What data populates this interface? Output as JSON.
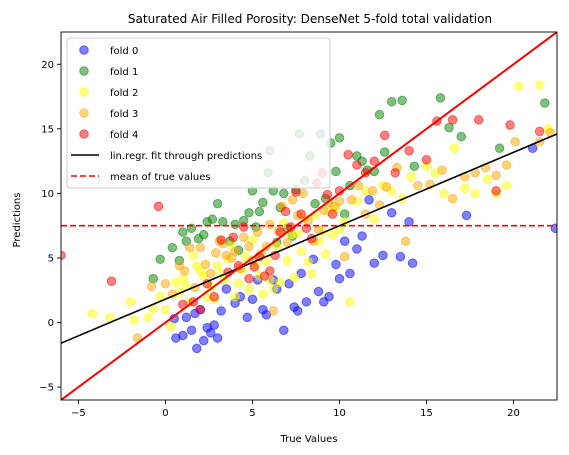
{
  "chart_data": {
    "type": "scatter",
    "title": "Saturated Air Filled Porosity: DenseNet 5-fold total validation",
    "xlabel": "True Values",
    "ylabel": "Predictions",
    "xlim": [
      -6,
      22.5
    ],
    "ylim": [
      -6,
      22.5
    ],
    "xticks": [
      "−5",
      "0",
      "5",
      "10",
      "15",
      "20"
    ],
    "xtick_values": [
      -5,
      0,
      5,
      10,
      15,
      20
    ],
    "yticks": [
      "−5",
      "0",
      "5",
      "10",
      "15",
      "20"
    ],
    "ytick_values": [
      -5,
      0,
      5,
      10,
      15,
      20
    ],
    "grid": false,
    "legend_position": "top-left",
    "series": [
      {
        "name": "fold 0",
        "color": "#0000ff",
        "points": [
          [
            0.5,
            0.3
          ],
          [
            0.6,
            -1.2
          ],
          [
            1.0,
            -1.0
          ],
          [
            1.2,
            0.4
          ],
          [
            1.5,
            -0.6
          ],
          [
            1.7,
            0.7
          ],
          [
            1.8,
            -2.0
          ],
          [
            2.0,
            1.0
          ],
          [
            2.2,
            -1.4
          ],
          [
            2.4,
            -0.4
          ],
          [
            2.6,
            -0.8
          ],
          [
            2.8,
            -0.2
          ],
          [
            3.0,
            -1.2
          ],
          [
            3.2,
            0.9
          ],
          [
            3.5,
            2.6
          ],
          [
            4.0,
            1.5
          ],
          [
            4.3,
            2.0
          ],
          [
            4.7,
            0.4
          ],
          [
            5.0,
            1.8
          ],
          [
            5.3,
            3.3
          ],
          [
            5.6,
            1.0
          ],
          [
            5.8,
            0.6
          ],
          [
            6.2,
            3.3
          ],
          [
            6.4,
            2.6
          ],
          [
            6.8,
            -0.6
          ],
          [
            7.1,
            3.0
          ],
          [
            7.4,
            1.2
          ],
          [
            7.6,
            0.9
          ],
          [
            7.8,
            3.8
          ],
          [
            8.1,
            1.6
          ],
          [
            8.5,
            4.9
          ],
          [
            8.8,
            2.4
          ],
          [
            9.1,
            1.6
          ],
          [
            9.4,
            2.0
          ],
          [
            9.8,
            4.5
          ],
          [
            10.0,
            3.4
          ],
          [
            10.3,
            6.3
          ],
          [
            10.6,
            3.8
          ],
          [
            11.0,
            5.7
          ],
          [
            11.3,
            6.7
          ],
          [
            11.7,
            9.5
          ],
          [
            12.0,
            4.6
          ],
          [
            12.5,
            5.2
          ],
          [
            13.0,
            8.5
          ],
          [
            13.5,
            5.1
          ],
          [
            14.0,
            7.8
          ],
          [
            14.2,
            4.6
          ],
          [
            17.3,
            8.3
          ],
          [
            21.1,
            13.5
          ],
          [
            22.4,
            7.3
          ]
        ]
      },
      {
        "name": "fold 1",
        "color": "#008000",
        "points": [
          [
            -0.7,
            3.4
          ],
          [
            -0.3,
            4.9
          ],
          [
            0.4,
            5.8
          ],
          [
            0.8,
            4.8
          ],
          [
            1.0,
            7.0
          ],
          [
            1.2,
            6.3
          ],
          [
            1.5,
            7.3
          ],
          [
            1.9,
            6.5
          ],
          [
            2.2,
            6.8
          ],
          [
            2.4,
            7.8
          ],
          [
            2.7,
            8.0
          ],
          [
            3.0,
            9.2
          ],
          [
            3.3,
            7.8
          ],
          [
            3.7,
            6.3
          ],
          [
            4.0,
            7.6
          ],
          [
            4.2,
            5.6
          ],
          [
            4.5,
            7.9
          ],
          [
            4.8,
            8.5
          ],
          [
            5.0,
            10.2
          ],
          [
            5.2,
            7.4
          ],
          [
            5.4,
            8.6
          ],
          [
            5.6,
            9.3
          ],
          [
            5.9,
            11.6
          ],
          [
            6.0,
            13.3
          ],
          [
            6.2,
            10.2
          ],
          [
            6.4,
            6.2
          ],
          [
            6.6,
            8.9
          ],
          [
            6.8,
            10.0
          ],
          [
            7.0,
            7.3
          ],
          [
            7.3,
            6.7
          ],
          [
            7.5,
            10.3
          ],
          [
            7.7,
            14.6
          ],
          [
            8.0,
            11.0
          ],
          [
            8.3,
            12.9
          ],
          [
            8.6,
            9.2
          ],
          [
            8.9,
            14.6
          ],
          [
            9.2,
            9.6
          ],
          [
            9.5,
            13.9
          ],
          [
            9.8,
            11.7
          ],
          [
            10.0,
            14.3
          ],
          [
            10.3,
            8.4
          ],
          [
            10.6,
            10.6
          ],
          [
            11.0,
            12.9
          ],
          [
            11.3,
            12.5
          ],
          [
            11.6,
            11.8
          ],
          [
            12.0,
            11.7
          ],
          [
            12.3,
            16.1
          ],
          [
            12.6,
            13.2
          ],
          [
            13.0,
            17.1
          ],
          [
            13.6,
            17.2
          ],
          [
            14.3,
            12.1
          ],
          [
            15.8,
            17.4
          ],
          [
            16.3,
            15.1
          ],
          [
            17.0,
            14.4
          ],
          [
            19.2,
            13.5
          ],
          [
            21.8,
            17.0
          ]
        ]
      },
      {
        "name": "fold 2",
        "color": "#ffff00",
        "points": [
          [
            -4.2,
            0.7
          ],
          [
            -3.2,
            0.4
          ],
          [
            -2.0,
            1.6
          ],
          [
            -1.8,
            0.2
          ],
          [
            -1.0,
            0.4
          ],
          [
            -0.7,
            1.1
          ],
          [
            -0.3,
            2.0
          ],
          [
            0.0,
            1.0
          ],
          [
            0.3,
            -0.3
          ],
          [
            0.6,
            3.1
          ],
          [
            0.8,
            2.3
          ],
          [
            1.0,
            3.4
          ],
          [
            1.2,
            2.8
          ],
          [
            1.4,
            1.6
          ],
          [
            1.6,
            5.2
          ],
          [
            1.8,
            4.4
          ],
          [
            2.0,
            4.0
          ],
          [
            2.2,
            3.6
          ],
          [
            2.4,
            2.0
          ],
          [
            2.6,
            2.8
          ],
          [
            2.8,
            1.8
          ],
          [
            3.0,
            4.4
          ],
          [
            3.2,
            3.8
          ],
          [
            3.4,
            3.3
          ],
          [
            3.6,
            4.9
          ],
          [
            3.8,
            6.0
          ],
          [
            4.0,
            2.0
          ],
          [
            4.2,
            3.0
          ],
          [
            4.4,
            4.1
          ],
          [
            4.6,
            5.1
          ],
          [
            4.8,
            2.6
          ],
          [
            5.0,
            6.4
          ],
          [
            5.2,
            4.4
          ],
          [
            5.4,
            3.6
          ],
          [
            5.6,
            2.2
          ],
          [
            5.8,
            4.8
          ],
          [
            6.0,
            3.3
          ],
          [
            6.2,
            2.6
          ],
          [
            6.4,
            5.9
          ],
          [
            6.6,
            3.1
          ],
          [
            6.8,
            7.7
          ],
          [
            7.0,
            4.8
          ],
          [
            7.2,
            6.8
          ],
          [
            7.4,
            3.5
          ],
          [
            7.6,
            6.9
          ],
          [
            7.8,
            5.5
          ],
          [
            8.0,
            8.1
          ],
          [
            8.2,
            4.7
          ],
          [
            8.4,
            3.8
          ],
          [
            8.6,
            8.3
          ],
          [
            8.8,
            6.3
          ],
          [
            9.0,
            7.0
          ],
          [
            9.2,
            5.3
          ],
          [
            9.4,
            8.6
          ],
          [
            9.6,
            6.8
          ],
          [
            9.8,
            8.8
          ],
          [
            10.0,
            7.2
          ],
          [
            10.3,
            7.8
          ],
          [
            10.6,
            1.6
          ],
          [
            11.0,
            9.4
          ],
          [
            11.5,
            10.2
          ],
          [
            12.0,
            8.0
          ],
          [
            12.5,
            10.6
          ],
          [
            13.0,
            10.2
          ],
          [
            13.6,
            9.6
          ],
          [
            14.1,
            11.3
          ],
          [
            15.0,
            12.1
          ],
          [
            15.5,
            11.6
          ],
          [
            16.0,
            10.0
          ],
          [
            16.6,
            13.5
          ],
          [
            17.2,
            10.4
          ],
          [
            17.8,
            10.0
          ],
          [
            18.5,
            11.1
          ],
          [
            19.0,
            10.0
          ],
          [
            19.6,
            10.6
          ],
          [
            20.3,
            18.3
          ],
          [
            21.5,
            18.4
          ],
          [
            22.0,
            15.0
          ]
        ]
      },
      {
        "name": "fold 3",
        "color": "#ffa500",
        "points": [
          [
            -1.6,
            -1.2
          ],
          [
            -0.8,
            2.8
          ],
          [
            0.0,
            3.0
          ],
          [
            0.4,
            2.2
          ],
          [
            0.8,
            4.4
          ],
          [
            1.1,
            4.0
          ],
          [
            1.4,
            5.8
          ],
          [
            1.7,
            2.7
          ],
          [
            2.0,
            5.8
          ],
          [
            2.3,
            4.5
          ],
          [
            2.6,
            3.8
          ],
          [
            2.9,
            5.4
          ],
          [
            3.1,
            6.3
          ],
          [
            3.3,
            6.1
          ],
          [
            3.5,
            5.2
          ],
          [
            3.8,
            5.0
          ],
          [
            4.0,
            5.5
          ],
          [
            4.3,
            4.2
          ],
          [
            4.5,
            6.6
          ],
          [
            4.8,
            5.9
          ],
          [
            5.0,
            4.8
          ],
          [
            5.3,
            7.0
          ],
          [
            5.5,
            5.3
          ],
          [
            5.8,
            5.9
          ],
          [
            6.0,
            7.6
          ],
          [
            6.2,
            0.9
          ],
          [
            6.5,
            7.1
          ],
          [
            6.7,
            9.0
          ],
          [
            7.0,
            6.2
          ],
          [
            7.3,
            9.5
          ],
          [
            7.6,
            8.3
          ],
          [
            7.9,
            10.0
          ],
          [
            8.2,
            7.9
          ],
          [
            8.5,
            6.3
          ],
          [
            8.8,
            7.2
          ],
          [
            9.1,
            8.7
          ],
          [
            9.4,
            9.3
          ],
          [
            9.7,
            9.0
          ],
          [
            10.0,
            9.4
          ],
          [
            10.3,
            5.1
          ],
          [
            10.7,
            9.5
          ],
          [
            11.1,
            10.6
          ],
          [
            11.5,
            8.4
          ],
          [
            11.9,
            10.2
          ],
          [
            12.3,
            9.1
          ],
          [
            12.7,
            10.5
          ],
          [
            13.3,
            12.0
          ],
          [
            13.8,
            6.3
          ],
          [
            14.5,
            10.6
          ],
          [
            15.2,
            10.7
          ],
          [
            15.9,
            11.8
          ],
          [
            16.5,
            9.6
          ],
          [
            17.2,
            11.3
          ],
          [
            17.8,
            11.6
          ],
          [
            18.4,
            12.0
          ],
          [
            19.0,
            11.4
          ],
          [
            19.6,
            12.2
          ],
          [
            20.1,
            14.0
          ],
          [
            21.5,
            14.0
          ],
          [
            22.1,
            14.7
          ]
        ]
      },
      {
        "name": "fold 4",
        "color": "#ff0000",
        "points": [
          [
            -6.0,
            5.2
          ],
          [
            -3.1,
            3.2
          ],
          [
            -0.4,
            9.0
          ],
          [
            1.0,
            1.4
          ],
          [
            1.6,
            1.6
          ],
          [
            2.0,
            1.0
          ],
          [
            2.4,
            3.0
          ],
          [
            2.8,
            2.0
          ],
          [
            3.2,
            6.4
          ],
          [
            3.6,
            3.9
          ],
          [
            3.9,
            6.6
          ],
          [
            4.2,
            4.4
          ],
          [
            4.5,
            7.4
          ],
          [
            4.8,
            3.4
          ],
          [
            5.1,
            4.3
          ],
          [
            5.4,
            5.1
          ],
          [
            5.7,
            3.6
          ],
          [
            6.0,
            4.0
          ],
          [
            6.3,
            5.2
          ],
          [
            6.6,
            7.0
          ],
          [
            6.9,
            8.6
          ],
          [
            7.2,
            7.4
          ],
          [
            7.5,
            10.1
          ],
          [
            7.8,
            8.4
          ],
          [
            8.1,
            7.3
          ],
          [
            8.4,
            6.5
          ],
          [
            8.7,
            10.8
          ],
          [
            9.0,
            11.6
          ],
          [
            9.3,
            9.9
          ],
          [
            9.6,
            8.4
          ],
          [
            10.0,
            10.2
          ],
          [
            10.5,
            13.0
          ],
          [
            11.0,
            12.2
          ],
          [
            11.5,
            11.6
          ],
          [
            12.0,
            12.5
          ],
          [
            12.6,
            14.5
          ],
          [
            13.2,
            11.6
          ],
          [
            14.0,
            13.3
          ],
          [
            15.0,
            12.6
          ],
          [
            15.6,
            15.6
          ],
          [
            16.5,
            15.7
          ],
          [
            18.0,
            15.7
          ],
          [
            19.0,
            10.2
          ],
          [
            19.8,
            15.3
          ],
          [
            21.5,
            14.8
          ]
        ]
      }
    ],
    "fit_line": {
      "name": "lin.regr. fit through predictions",
      "color": "#000000",
      "x": [
        -6,
        22.5
      ],
      "y": [
        -1.6,
        14.6
      ]
    },
    "identity_line": {
      "color": "#ff0000",
      "x": [
        -6,
        22.5
      ],
      "y": [
        -6,
        22.5
      ]
    },
    "mean_line": {
      "name": "mean of true values",
      "color": "#ff0000",
      "y": 7.5
    }
  }
}
